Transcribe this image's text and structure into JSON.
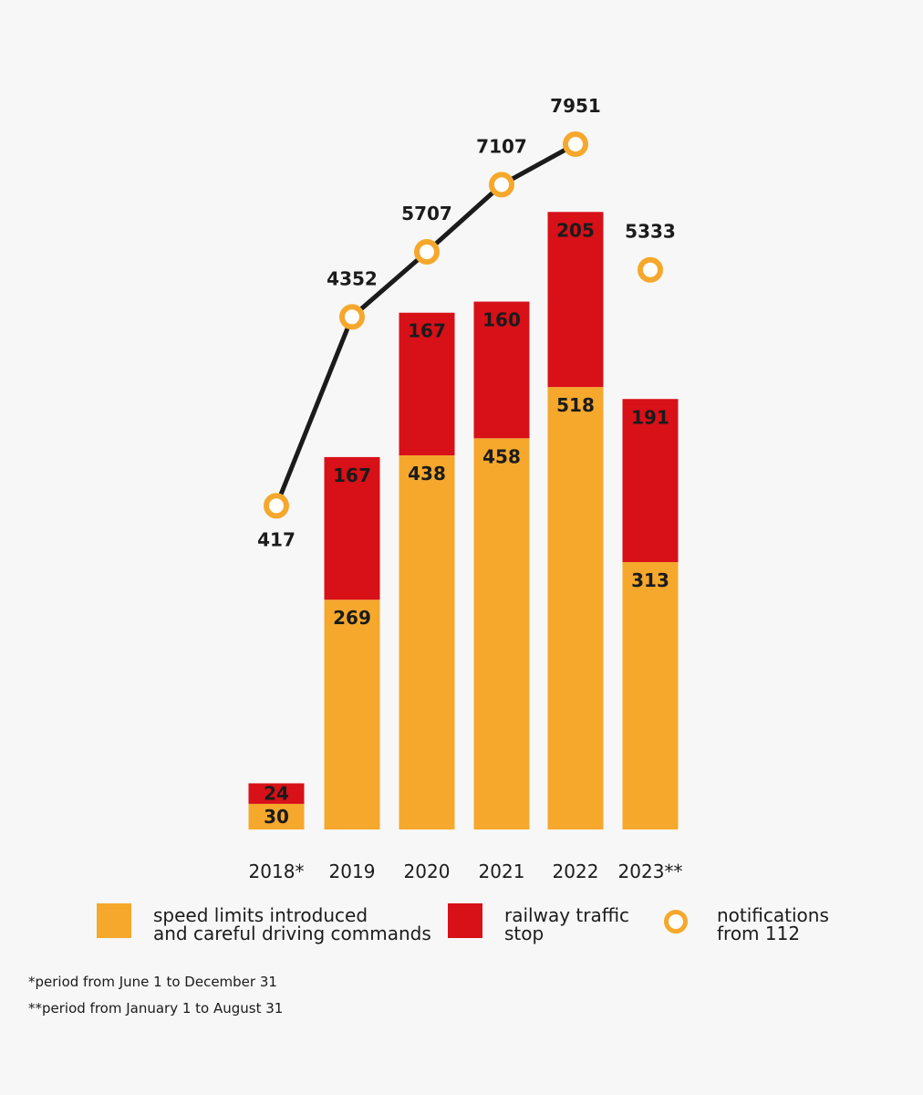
{
  "chart_data": {
    "type": "bar",
    "stacked": true,
    "categories": [
      "2018*",
      "2019",
      "2020",
      "2021",
      "2022",
      "2023**"
    ],
    "series": [
      {
        "name": "speed limits introduced\nand careful driving commands",
        "kind": "bar",
        "color": "#f5a82c",
        "values": [
          30,
          269,
          438,
          458,
          518,
          313
        ]
      },
      {
        "name": "railway traffic\nstop",
        "kind": "bar",
        "color": "#d81018",
        "values": [
          24,
          167,
          167,
          160,
          205,
          191
        ]
      },
      {
        "name": "notifications\nfrom 112",
        "kind": "line",
        "color": "#f5a82c",
        "line_color": "#1b1b1b",
        "values": [
          417,
          4352,
          5707,
          7107,
          7951,
          5333
        ],
        "connected_points": 5
      }
    ],
    "grid": false,
    "legend_position": "bottom"
  },
  "footnotes": [
    "*period from June 1 to December 31",
    "**period from January 1 to August 31"
  ]
}
